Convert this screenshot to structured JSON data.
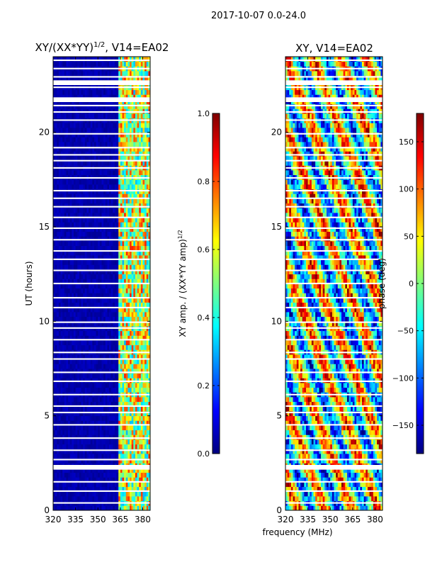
{
  "figure": {
    "suptitle": "2017-10-07 0.0-24.0",
    "xlabel_shared": "frequency (MHz)"
  },
  "colors": {
    "cmap": [
      "#00007f",
      "#0000ff",
      "#007fff",
      "#00ffff",
      "#7fff7f",
      "#ffff00",
      "#ff7f00",
      "#ff0000",
      "#7f0000"
    ],
    "gap": "#ffffff",
    "frame": "#000000"
  },
  "chart_data": [
    {
      "type": "heatmap",
      "title_prefix": "XY/(XX*YY)",
      "title_sup": "1/2",
      "title_suffix": ", V14=EA02",
      "xlabel": "",
      "ylabel": "UT (hours)",
      "xlim": [
        320,
        385
      ],
      "ylim": [
        0,
        24
      ],
      "xticks": [
        320,
        335,
        350,
        365,
        380
      ],
      "xtick_labels": [
        "320",
        "335",
        "350",
        "365",
        "380"
      ],
      "yticks": [
        0,
        5,
        10,
        15,
        20
      ],
      "ytick_labels": [
        "0",
        "5",
        "10",
        "15",
        "20"
      ],
      "colorbar": {
        "label_main": "XY amp. / (XX*YY amp)",
        "label_sup": "1/2",
        "range": [
          0.0,
          1.0
        ],
        "ticks": [
          0.0,
          0.2,
          0.4,
          0.6,
          0.8,
          1.0
        ],
        "tick_labels": [
          "0.0",
          "0.2",
          "0.4",
          "0.6",
          "0.8",
          "1.0"
        ]
      },
      "description": "normalized cross-correlation amplitude; near 0 (dark blue) for 320-363 MHz, elevated 0.3-0.9 for 363-383 MHz; many horizontal gaps (white rows)"
    },
    {
      "type": "heatmap",
      "title": "XY, V14=EA02",
      "xlabel": "frequency (MHz)",
      "ylabel": "",
      "xlim": [
        320,
        385
      ],
      "ylim": [
        0,
        24
      ],
      "xticks": [
        320,
        335,
        350,
        365,
        380
      ],
      "xtick_labels": [
        "320",
        "335",
        "350",
        "365",
        "380"
      ],
      "yticks": [
        0,
        5,
        10,
        15,
        20
      ],
      "ytick_labels": [
        "0",
        "5",
        "10",
        "15",
        "20"
      ],
      "colorbar": {
        "label": "phase (deg)",
        "range": [
          -180,
          180
        ],
        "ticks": [
          -150,
          -100,
          -50,
          0,
          50,
          100,
          150
        ],
        "tick_labels": [
          "−150",
          "−100",
          "−50",
          "0",
          "50",
          "100",
          "150"
        ]
      },
      "description": "XY phase in degrees, spanning -180 to 180 across all frequencies and times; many horizontal gaps"
    }
  ]
}
